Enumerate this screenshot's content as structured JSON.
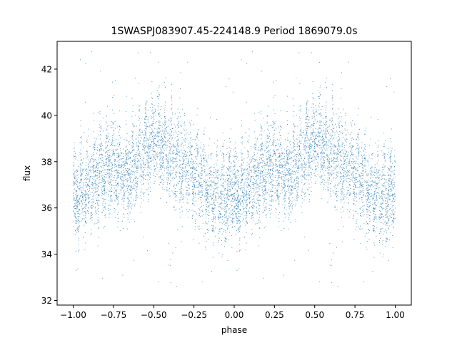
{
  "chart_data": {
    "type": "scatter",
    "title": "1SWASPJ083907.45-224148.9 Period 1869079.0s",
    "xlabel": "phase",
    "ylabel": "flux",
    "xlim": [
      -1.1,
      1.1
    ],
    "ylim": [
      31.8,
      43.2
    ],
    "xticks": [
      -1.0,
      -0.75,
      -0.5,
      -0.25,
      0.0,
      0.25,
      0.5,
      0.75,
      1.0
    ],
    "xtick_labels": [
      "−1.00",
      "−0.75",
      "−0.50",
      "−0.25",
      "0.00",
      "0.25",
      "0.50",
      "0.75",
      "1.00"
    ],
    "yticks": [
      32,
      34,
      36,
      38,
      40,
      42
    ],
    "ytick_labels": [
      "32",
      "34",
      "36",
      "38",
      "40",
      "42"
    ],
    "grid": false,
    "legend": "none",
    "marker_color": "#1f77b4",
    "phase_folded_mirror": true,
    "baseline_profile": {
      "x": [
        0.0,
        0.05,
        0.1,
        0.15,
        0.2,
        0.25,
        0.3,
        0.35,
        0.4,
        0.45,
        0.5,
        0.55,
        0.6,
        0.65,
        0.7,
        0.75,
        0.8,
        0.85,
        0.9,
        0.95,
        1.0
      ],
      "y": [
        36.2,
        36.7,
        37.0,
        37.4,
        37.8,
        37.9,
        37.6,
        37.5,
        38.0,
        38.5,
        38.8,
        38.6,
        38.3,
        38.1,
        37.8,
        37.4,
        37.0,
        36.7,
        36.5,
        36.6,
        36.8
      ]
    },
    "scatter_half_width": 0.9,
    "outlier_range": [
      32.3,
      43.0
    ]
  }
}
